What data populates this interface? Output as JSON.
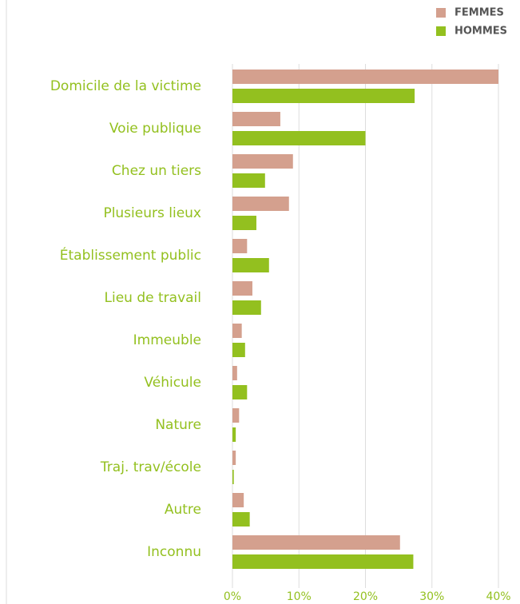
{
  "chart_data": {
    "type": "hbar",
    "categories": [
      "Domicile de la victime",
      "Voie publique",
      "Chez un tiers",
      "Plusieurs lieux",
      "Établissement public",
      "Lieu de travail",
      "Immeuble",
      "Véhicule",
      "Nature",
      "Traj. trav/école",
      "Autre",
      "Inconnu"
    ],
    "series": [
      {
        "name": "FEMMES",
        "color": "#d4a08e",
        "values": [
          40.0,
          7.2,
          9.1,
          8.5,
          2.2,
          3.0,
          1.4,
          0.7,
          1.0,
          0.5,
          1.7,
          25.2
        ]
      },
      {
        "name": "HOMMES",
        "color": "#93c01f",
        "values": [
          27.4,
          20.0,
          4.9,
          3.6,
          5.5,
          4.3,
          1.9,
          2.2,
          0.5,
          0.2,
          2.6,
          27.2
        ]
      }
    ],
    "xlim": [
      0,
      40
    ],
    "xticks": [
      {
        "value": 0,
        "label": "0%"
      },
      {
        "value": 10,
        "label": "10%"
      },
      {
        "value": 20,
        "label": "20%"
      },
      {
        "value": 30,
        "label": "30%"
      },
      {
        "value": 40,
        "label": "40%"
      }
    ],
    "grid": true,
    "legend": "top-right"
  }
}
